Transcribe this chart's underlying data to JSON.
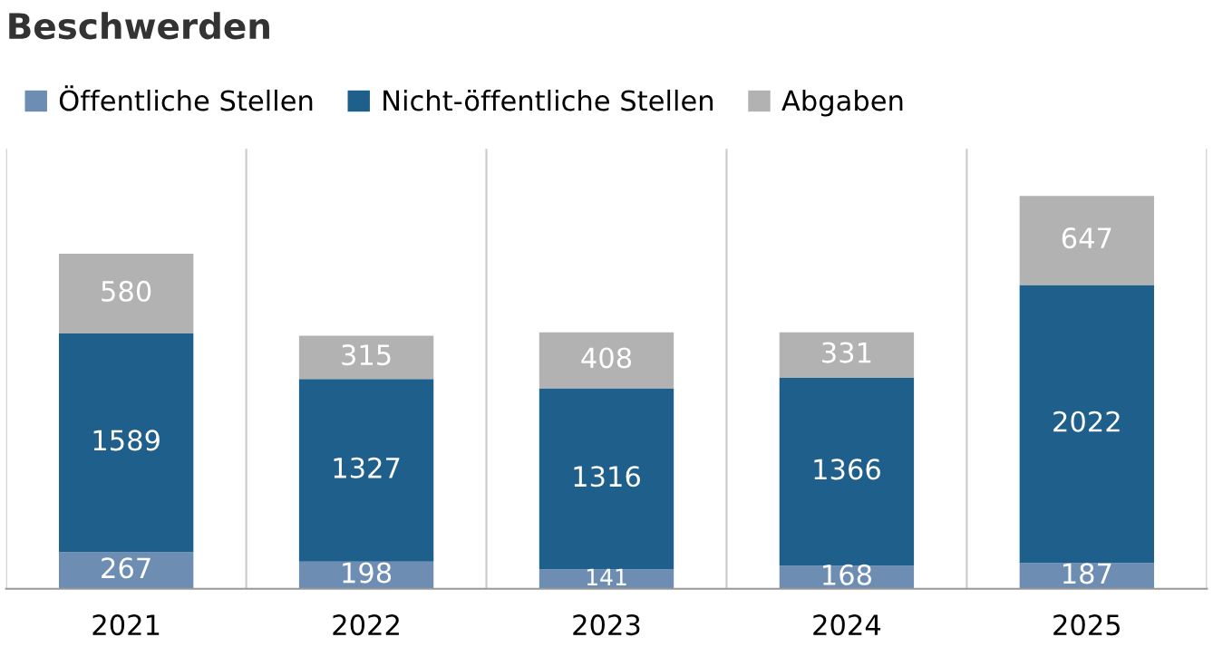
{
  "chart_data": {
    "type": "bar",
    "title": "Beschwerden",
    "stacked": true,
    "data_labels": true,
    "legend": "top left",
    "grid": "x",
    "tick_labels": "x",
    "categories": [
      "2021",
      "2022",
      "2023",
      "2024",
      "2025"
    ],
    "series": [
      {
        "name": "Öffentliche Stellen",
        "color": "#6d8db3",
        "values": [
          267,
          198,
          141,
          168,
          187
        ]
      },
      {
        "name": "Nicht-öffentliche Stellen",
        "color": "#1f5f8b",
        "values": [
          1589,
          1327,
          1316,
          1366,
          2022
        ]
      },
      {
        "name": "Abgaben",
        "color": "#b2b2b2",
        "values": [
          580,
          315,
          408,
          331,
          647
        ]
      }
    ]
  }
}
